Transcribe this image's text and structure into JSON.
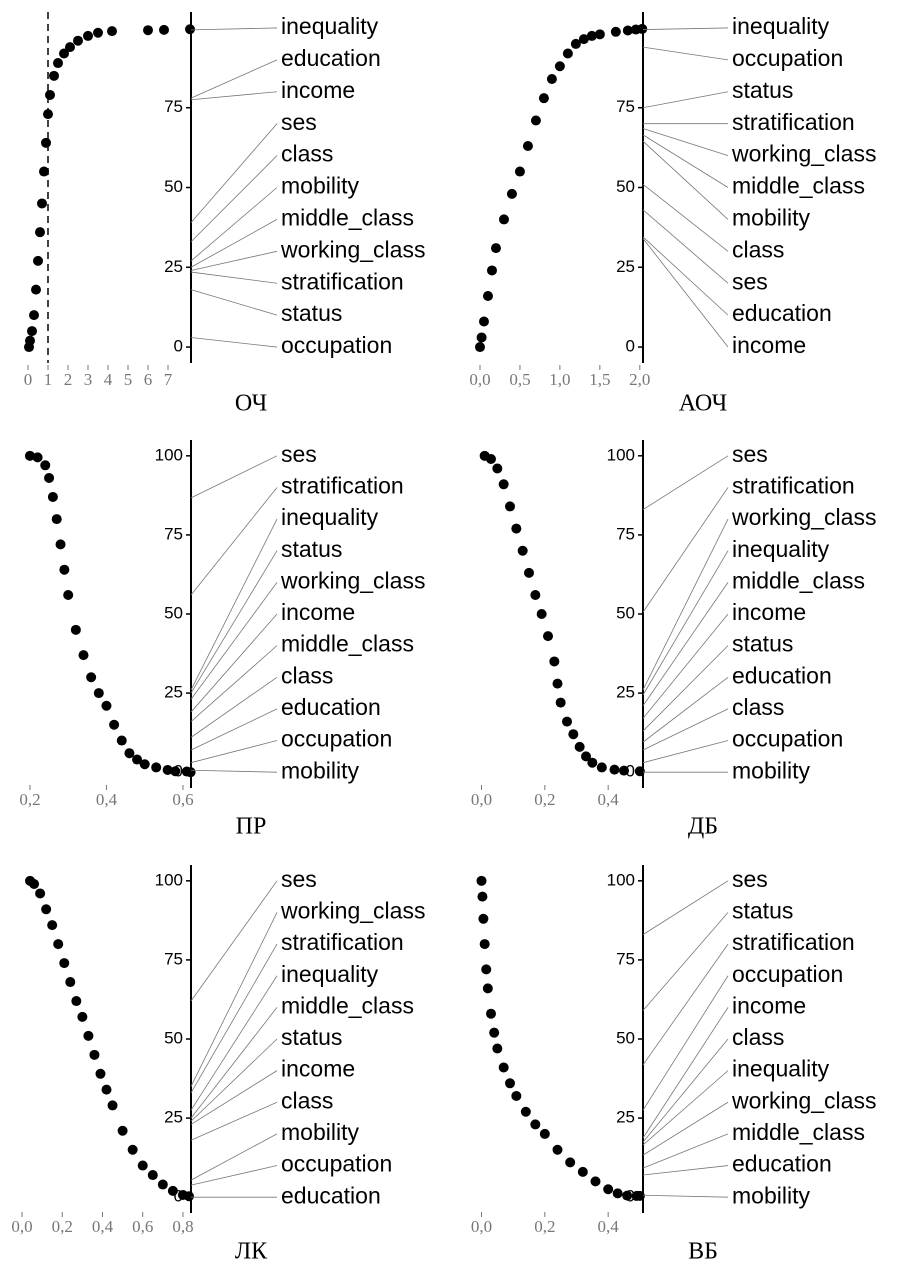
{
  "chart_data": [
    {
      "type": "scatter",
      "title": "ОЧ",
      "color": "#000000",
      "x": [
        0.05,
        0.1,
        0.2,
        0.3,
        0.4,
        0.5,
        0.6,
        0.7,
        0.8,
        0.9,
        1.0,
        1.1,
        1.3,
        1.5,
        1.8,
        2.1,
        2.5,
        3.0,
        3.5,
        4.2,
        6.0,
        6.8,
        8.1
      ],
      "values": [
        0,
        2,
        5,
        10,
        18,
        27,
        36,
        45,
        55,
        64,
        73,
        79,
        85,
        89,
        92,
        94,
        96,
        97.5,
        98.5,
        99,
        99.3,
        99.4,
        99.6
      ],
      "xlim": [
        -0.4,
        8.15
      ],
      "xticks": [
        0,
        1,
        2,
        3,
        4,
        5,
        6,
        7
      ],
      "vline": 1,
      "ylim": [
        -5,
        105
      ],
      "yticks": [
        0,
        25,
        50,
        75
      ],
      "labels": [
        {
          "text": "inequality",
          "value": 99.4
        },
        {
          "text": "education",
          "value": 78
        },
        {
          "text": "income",
          "value": 77.5
        },
        {
          "text": "ses",
          "value": 39
        },
        {
          "text": "class",
          "value": 33
        },
        {
          "text": "mobility",
          "value": 27
        },
        {
          "text": "middle_class",
          "value": 25
        },
        {
          "text": "working_class",
          "value": 24
        },
        {
          "text": "stratification",
          "value": 23.5
        },
        {
          "text": "status",
          "value": 18
        },
        {
          "text": "occupation",
          "value": 3
        }
      ]
    },
    {
      "type": "scatter",
      "title": "АОЧ",
      "color": "#000000",
      "x": [
        0,
        0.02,
        0.05,
        0.1,
        0.15,
        0.2,
        0.3,
        0.4,
        0.5,
        0.6,
        0.7,
        0.8,
        0.9,
        1.0,
        1.1,
        1.2,
        1.3,
        1.4,
        1.5,
        1.7,
        1.85,
        1.95,
        2.03
      ],
      "values": [
        0,
        3,
        8,
        16,
        24,
        31,
        40,
        48,
        55,
        63,
        71,
        78,
        84,
        88,
        92,
        95,
        96.5,
        97.5,
        98,
        98.8,
        99.2,
        99.5,
        99.7
      ],
      "xlim": [
        -0.1,
        2.04
      ],
      "xticks": [
        {
          "value": 0,
          "label": "0,0"
        },
        {
          "value": 0.5,
          "label": "0,5"
        },
        {
          "value": 1,
          "label": "1,0"
        },
        {
          "value": 1.5,
          "label": "1,5"
        },
        {
          "value": 2,
          "label": "2,0"
        }
      ],
      "ylim": [
        -5,
        105
      ],
      "yticks": [
        0,
        25,
        50,
        75
      ],
      "labels": [
        {
          "text": "inequality",
          "value": 99.5
        },
        {
          "text": "occupation",
          "value": 94
        },
        {
          "text": "status",
          "value": 75
        },
        {
          "text": "stratification",
          "value": 70
        },
        {
          "text": "working_class",
          "value": 68.5
        },
        {
          "text": "middle_class",
          "value": 66.5
        },
        {
          "text": "mobility",
          "value": 64.5
        },
        {
          "text": "class",
          "value": 51
        },
        {
          "text": "ses",
          "value": 43
        },
        {
          "text": "education",
          "value": 34.5
        },
        {
          "text": "income",
          "value": 34
        }
      ]
    },
    {
      "type": "scatter",
      "title": "ПР",
      "color": "#000000",
      "x": [
        0.2,
        0.22,
        0.24,
        0.25,
        0.26,
        0.27,
        0.28,
        0.29,
        0.3,
        0.32,
        0.34,
        0.36,
        0.38,
        0.4,
        0.42,
        0.44,
        0.46,
        0.48,
        0.5,
        0.53,
        0.56,
        0.58,
        0.61,
        0.62
      ],
      "values": [
        100,
        99.5,
        97,
        93,
        87,
        80,
        72,
        64,
        56,
        45,
        37,
        30,
        25,
        21,
        15,
        10,
        6,
        4,
        2.5,
        1.5,
        0.7,
        0.3,
        0.2,
        0
      ],
      "xlim": [
        0.174,
        0.621
      ],
      "xticks": [
        {
          "value": 0.2,
          "label": "0,2"
        },
        {
          "value": 0.4,
          "label": "0,4"
        },
        {
          "value": 0.6,
          "label": "0,6"
        }
      ],
      "ylim": [
        -5,
        105
      ],
      "yticks": [
        0,
        25,
        50,
        75,
        100
      ],
      "labels": [
        {
          "text": "ses",
          "value": 86.7
        },
        {
          "text": "stratification",
          "value": 56
        },
        {
          "text": "inequality",
          "value": 26
        },
        {
          "text": "status",
          "value": 25
        },
        {
          "text": "working_class",
          "value": 23
        },
        {
          "text": "income",
          "value": 19
        },
        {
          "text": "middle_class",
          "value": 16
        },
        {
          "text": "class",
          "value": 11
        },
        {
          "text": "education",
          "value": 7
        },
        {
          "text": "occupation",
          "value": 3
        },
        {
          "text": "mobility",
          "value": 0.6
        }
      ]
    },
    {
      "type": "scatter",
      "title": "ДБ",
      "color": "#000000",
      "x": [
        0.01,
        0.03,
        0.05,
        0.07,
        0.09,
        0.11,
        0.13,
        0.15,
        0.17,
        0.19,
        0.21,
        0.23,
        0.24,
        0.25,
        0.27,
        0.29,
        0.31,
        0.33,
        0.35,
        0.38,
        0.42,
        0.45,
        0.5
      ],
      "values": [
        100,
        99,
        96,
        91,
        84,
        77,
        70,
        63,
        56,
        50,
        43,
        35,
        28,
        22,
        16,
        12,
        8,
        5,
        3,
        1.5,
        0.8,
        0.5,
        0.3
      ],
      "xlim": [
        -0.03,
        0.51
      ],
      "xticks": [
        {
          "value": 0,
          "label": "0,0"
        },
        {
          "value": 0.2,
          "label": "0,2"
        },
        {
          "value": 0.4,
          "label": "0,4"
        }
      ],
      "ylim": [
        -5,
        105
      ],
      "yticks": [
        0,
        25,
        50,
        75,
        100
      ],
      "labels": [
        {
          "text": "ses",
          "value": 83
        },
        {
          "text": "stratification",
          "value": 50.6
        },
        {
          "text": "working_class",
          "value": 26
        },
        {
          "text": "inequality",
          "value": 24.4
        },
        {
          "text": "middle_class",
          "value": 21
        },
        {
          "text": "income",
          "value": 17
        },
        {
          "text": "status",
          "value": 13
        },
        {
          "text": "education",
          "value": 9.5
        },
        {
          "text": "class",
          "value": 7
        },
        {
          "text": "occupation",
          "value": 3
        },
        {
          "text": "mobility",
          "value": 0
        }
      ]
    },
    {
      "type": "scatter",
      "title": "ЛК",
      "color": "#000000",
      "x": [
        0.04,
        0.06,
        0.09,
        0.12,
        0.15,
        0.18,
        0.21,
        0.24,
        0.27,
        0.3,
        0.33,
        0.36,
        0.39,
        0.42,
        0.45,
        0.5,
        0.55,
        0.6,
        0.65,
        0.7,
        0.75,
        0.8,
        0.83
      ],
      "values": [
        100,
        99,
        96,
        91,
        86,
        80,
        74,
        68,
        62,
        57,
        51,
        45,
        39,
        34,
        29,
        21,
        15,
        10,
        7,
        4,
        2,
        0.7,
        0.3
      ],
      "xlim": [
        -0.01,
        0.84
      ],
      "xticks": [
        {
          "value": 0,
          "label": "0,0"
        },
        {
          "value": 0.2,
          "label": "0,2"
        },
        {
          "value": 0.4,
          "label": "0,4"
        },
        {
          "value": 0.6,
          "label": "0,6"
        },
        {
          "value": 0.8,
          "label": "0,8"
        }
      ],
      "ylim": [
        -5,
        105
      ],
      "yticks": [
        0,
        25,
        50,
        75,
        100
      ],
      "labels": [
        {
          "text": "ses",
          "value": 62
        },
        {
          "text": "working_class",
          "value": 35
        },
        {
          "text": "stratification",
          "value": 33
        },
        {
          "text": "inequality",
          "value": 27.5
        },
        {
          "text": "middle_class",
          "value": 25
        },
        {
          "text": "status",
          "value": 24
        },
        {
          "text": "income",
          "value": 23
        },
        {
          "text": "class",
          "value": 18
        },
        {
          "text": "mobility",
          "value": 5.4
        },
        {
          "text": "occupation",
          "value": 3.8
        },
        {
          "text": "education",
          "value": 0
        }
      ]
    },
    {
      "type": "scatter",
      "title": "ВБ",
      "color": "#000000",
      "x": [
        0.0,
        0.003,
        0.006,
        0.01,
        0.015,
        0.02,
        0.03,
        0.04,
        0.05,
        0.07,
        0.09,
        0.11,
        0.14,
        0.17,
        0.2,
        0.24,
        0.28,
        0.32,
        0.36,
        0.4,
        0.43,
        0.46,
        0.49,
        0.5
      ],
      "values": [
        100,
        95,
        88,
        80,
        72,
        66,
        58,
        52,
        47,
        41,
        36,
        32,
        27,
        23,
        20,
        15,
        11,
        8,
        5,
        2.5,
        1.2,
        0.5,
        0.4,
        0.4
      ],
      "xlim": [
        -0.03,
        0.51
      ],
      "xticks": [
        {
          "value": 0,
          "label": "0,0"
        },
        {
          "value": 0.2,
          "label": "0,2"
        },
        {
          "value": 0.4,
          "label": "0,4"
        }
      ],
      "ylim": [
        -5,
        105
      ],
      "yticks": [
        0,
        25,
        50,
        75,
        100
      ],
      "labels": [
        {
          "text": "ses",
          "value": 83
        },
        {
          "text": "status",
          "value": 59
        },
        {
          "text": "stratification",
          "value": 41.8
        },
        {
          "text": "occupation",
          "value": 27.5
        },
        {
          "text": "income",
          "value": 18.7
        },
        {
          "text": "class",
          "value": 17.4
        },
        {
          "text": "inequality",
          "value": 16.5
        },
        {
          "text": "working_class",
          "value": 13.3
        },
        {
          "text": "middle_class",
          "value": 9.2
        },
        {
          "text": "education",
          "value": 7
        },
        {
          "text": "mobility",
          "value": 0.6
        }
      ]
    }
  ]
}
